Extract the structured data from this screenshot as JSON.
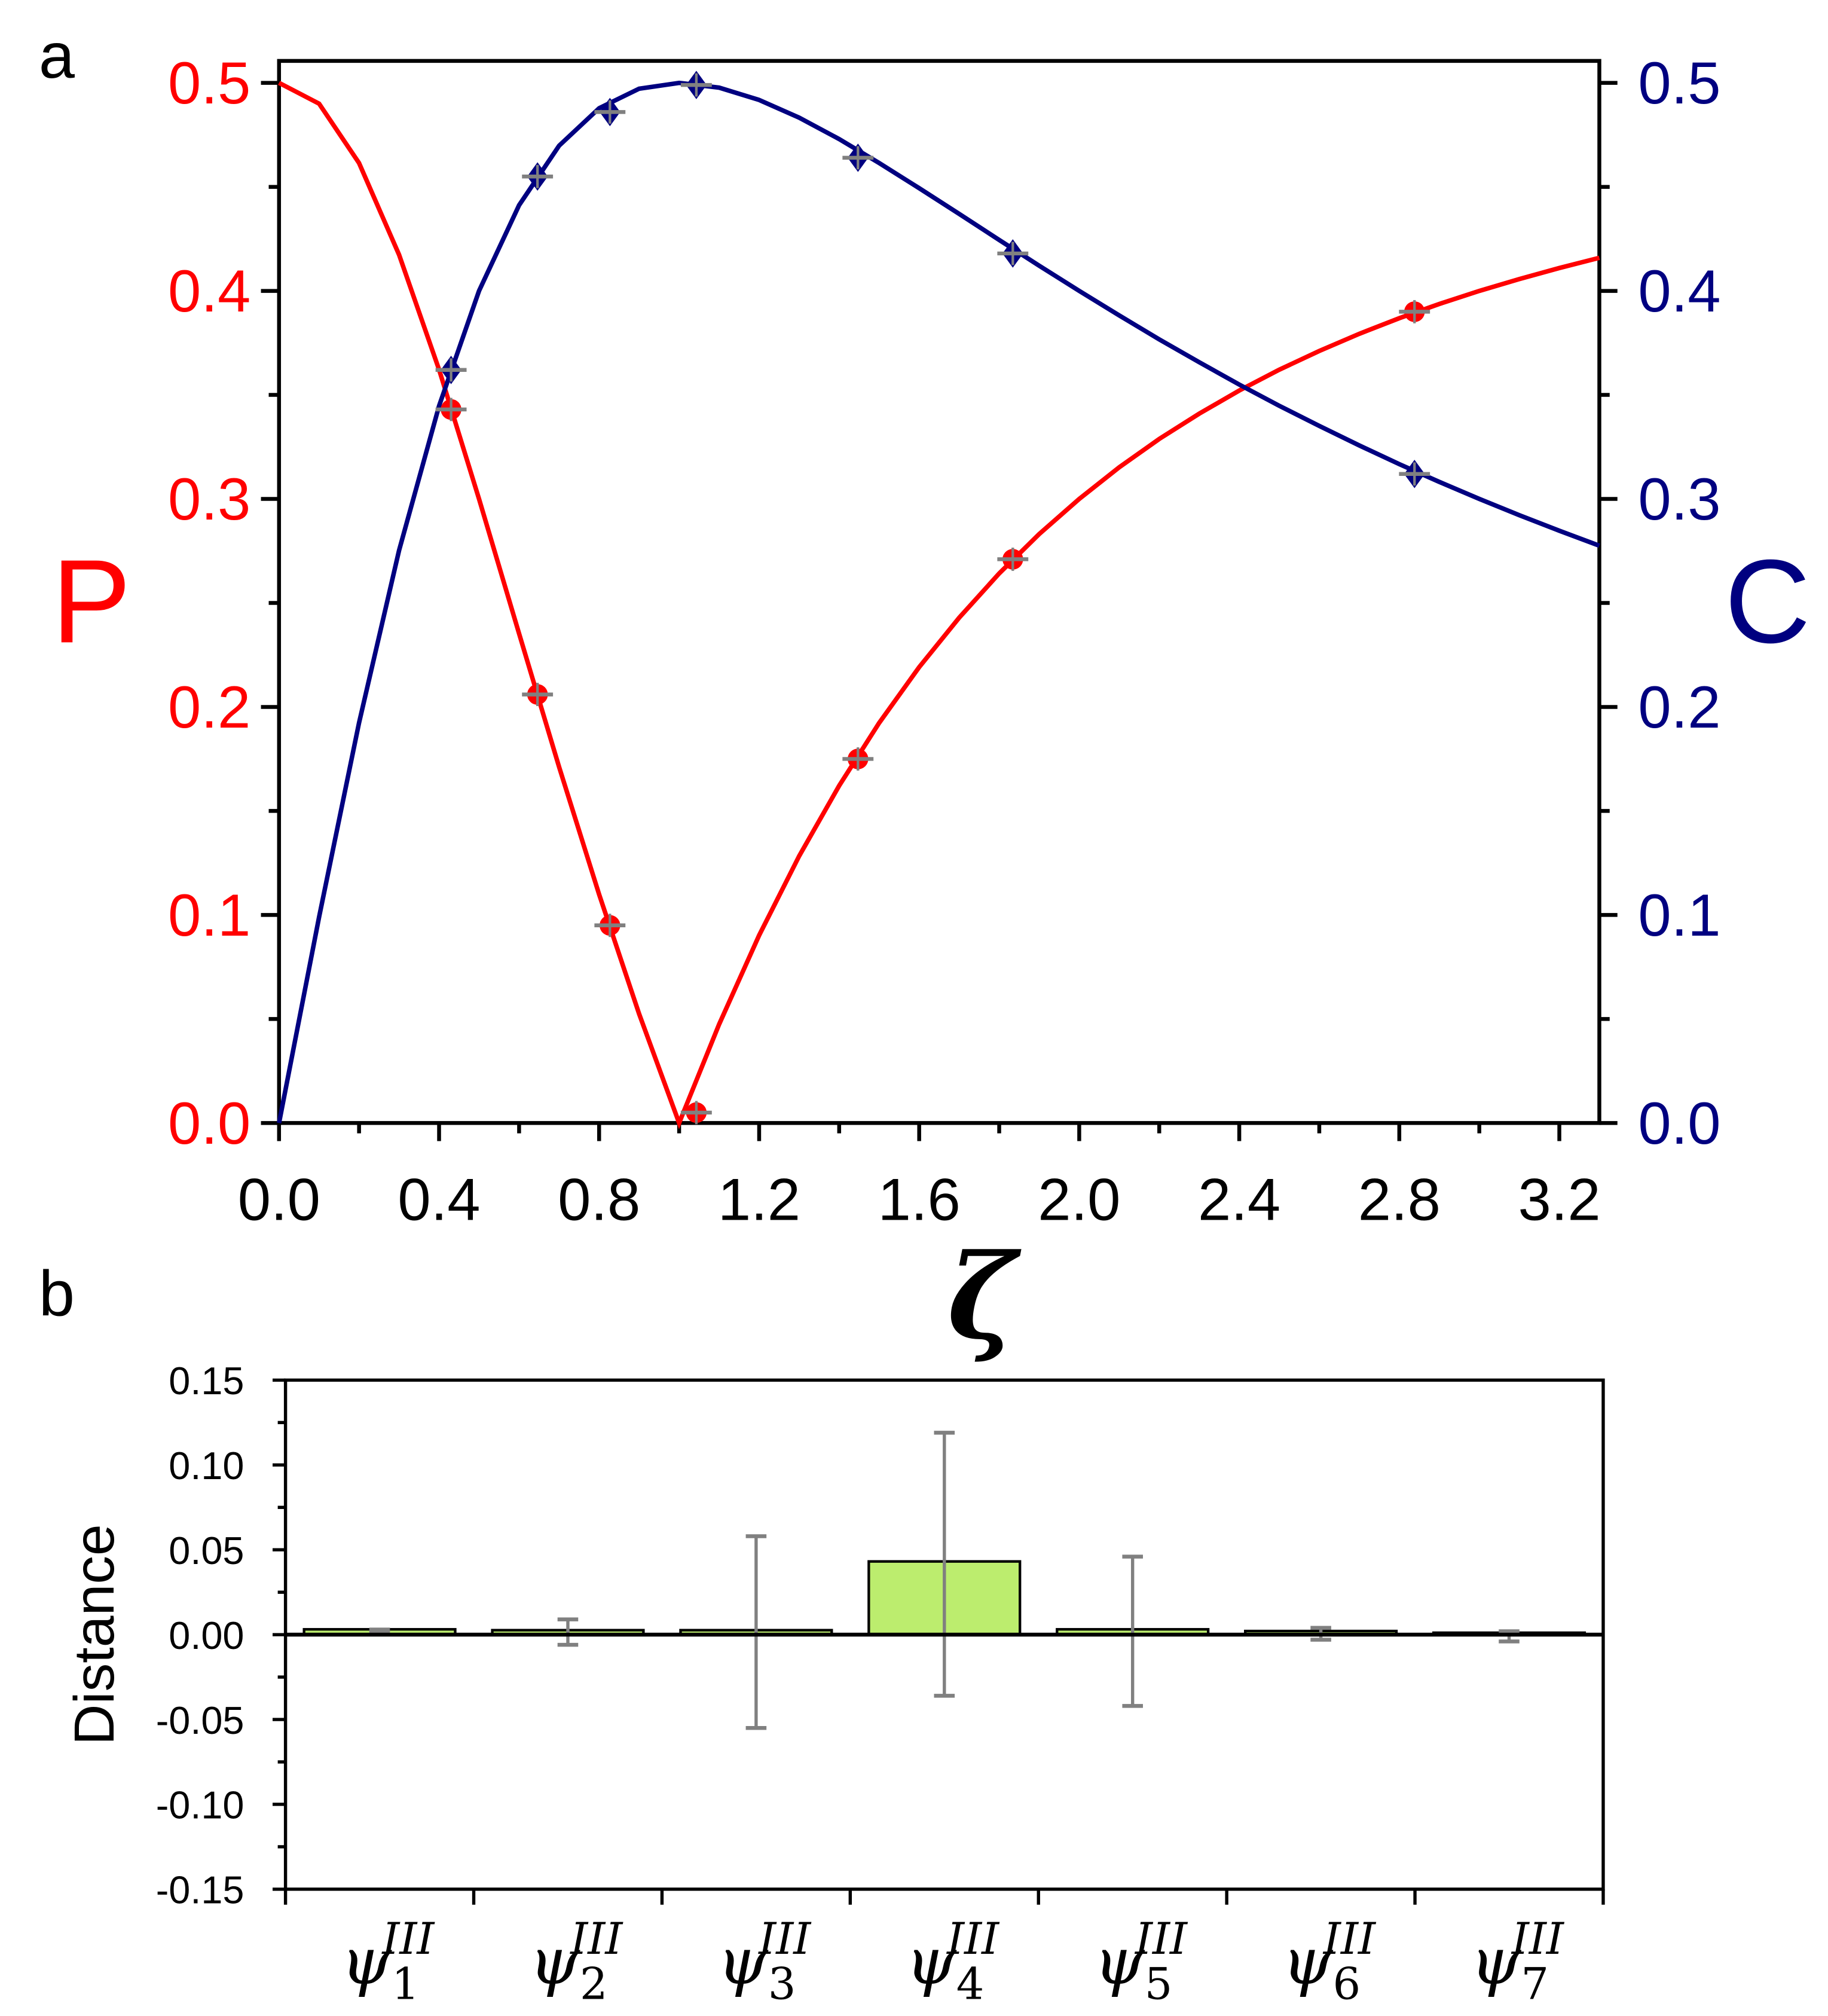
{
  "chart_data": [
    {
      "panel_label": "a",
      "type": "line",
      "xlabel": "ζ",
      "ylabel_left": "P",
      "ylabel_right": "C",
      "xlim": [
        0,
        3.3
      ],
      "ylim_left": [
        0,
        0.5
      ],
      "ylim_right": [
        0,
        0.5
      ],
      "x_ticks": [
        "0.0",
        "0.4",
        "0.8",
        "1.2",
        "1.6",
        "2.0",
        "2.4",
        "2.8",
        "3.2"
      ],
      "y_ticks": [
        "0.0",
        "0.1",
        "0.2",
        "0.3",
        "0.4",
        "0.5"
      ],
      "grid": false,
      "colors": {
        "P": "#ff0000",
        "C": "#000080",
        "errorbar": "#808080"
      },
      "curves": [
        {
          "axis": "left",
          "color": "#ff0000",
          "x": [
            0,
            0.1,
            0.2,
            0.3,
            0.4,
            0.5,
            0.6,
            0.7,
            0.8,
            0.9,
            1.0,
            1.1,
            1.2,
            1.3,
            1.4,
            1.5,
            1.6,
            1.7,
            1.8,
            1.9,
            2.0,
            2.1,
            2.2,
            2.3,
            2.4,
            2.5,
            2.6,
            2.7,
            2.8,
            2.9,
            3.0,
            3.1,
            3.2,
            3.3
          ],
          "y": [
            0.5,
            0.49,
            0.4615,
            0.4174,
            0.3621,
            0.3,
            0.2353,
            0.1711,
            0.1098,
            0.0525,
            0,
            0.0475,
            0.0902,
            0.1283,
            0.1622,
            0.1923,
            0.2191,
            0.2429,
            0.2642,
            0.2831,
            0.3,
            0.3152,
            0.3288,
            0.341,
            0.3521,
            0.3621,
            0.3711,
            0.3794,
            0.3869,
            0.3937,
            0.4,
            0.4057,
            0.411,
            0.4159
          ]
        },
        {
          "axis": "right",
          "color": "#000080",
          "x": [
            0,
            0.1,
            0.2,
            0.3,
            0.4,
            0.5,
            0.6,
            0.7,
            0.8,
            0.9,
            1.0,
            1.1,
            1.2,
            1.3,
            1.4,
            1.5,
            1.6,
            1.7,
            1.8,
            1.9,
            2.0,
            2.1,
            2.2,
            2.3,
            2.4,
            2.5,
            2.6,
            2.7,
            2.8,
            2.9,
            3.0,
            3.1,
            3.2,
            3.3
          ],
          "y": [
            0,
            0.099,
            0.1923,
            0.2752,
            0.3448,
            0.4,
            0.4412,
            0.4698,
            0.4878,
            0.4972,
            0.5,
            0.4977,
            0.4918,
            0.4833,
            0.473,
            0.4615,
            0.4494,
            0.437,
            0.4245,
            0.4121,
            0.4,
            0.3882,
            0.3767,
            0.3657,
            0.355,
            0.3448,
            0.3351,
            0.3257,
            0.3167,
            0.3082,
            0.3,
            0.2922,
            0.2847,
            0.2775
          ]
        }
      ],
      "points": [
        {
          "axis": "left",
          "marker": "circle",
          "color": "#ff0000",
          "x": [
            0.43,
            0.646,
            0.827,
            1.043,
            1.447,
            1.834,
            2.838
          ],
          "y": [
            0.343,
            0.206,
            0.095,
            0.005,
            0.175,
            0.271,
            0.39
          ]
        },
        {
          "axis": "right",
          "marker": "diamond",
          "color": "#000080",
          "x": [
            0.43,
            0.646,
            0.827,
            1.043,
            1.447,
            1.834,
            2.838
          ],
          "y": [
            0.362,
            0.455,
            0.486,
            0.499,
            0.464,
            0.418,
            0.312
          ]
        }
      ]
    },
    {
      "panel_label": "b",
      "type": "bar",
      "ylabel": "Distance",
      "ylim": [
        -0.15,
        0.15
      ],
      "y_ticks": [
        "0.15",
        "0.10",
        "0.05",
        "0.00",
        "-0.05",
        "-0.10",
        "-0.15"
      ],
      "categories": [
        {
          "base": "ψ",
          "sub": "1",
          "sup": "III"
        },
        {
          "base": "ψ",
          "sub": "2",
          "sup": "III"
        },
        {
          "base": "ψ",
          "sub": "3",
          "sup": "III"
        },
        {
          "base": "ψ",
          "sub": "4",
          "sup": "III"
        },
        {
          "base": "ψ",
          "sub": "5",
          "sup": "III"
        },
        {
          "base": "ψ",
          "sub": "6",
          "sup": "III"
        },
        {
          "base": "ψ",
          "sub": "7",
          "sup": "III"
        }
      ],
      "values": [
        0.002,
        0.0015,
        0.0015,
        0.042,
        0.002,
        0.001,
        0
      ],
      "error_low": [
        0.001,
        -0.006,
        -0.055,
        -0.036,
        -0.042,
        -0.003,
        -0.004
      ],
      "error_high": [
        0.003,
        0.009,
        0.058,
        0.119,
        0.046,
        0.004,
        0.002
      ],
      "bar_color": "#bced6e",
      "errorbar_color": "#808080",
      "grid": false
    }
  ]
}
